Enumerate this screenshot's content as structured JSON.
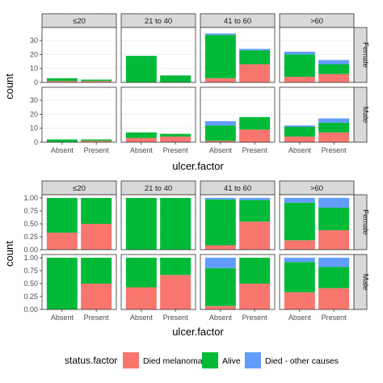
{
  "chart_data": [
    {
      "type": "bar",
      "position": "stack",
      "xlabel": "ulcer.factor",
      "ylabel": "count",
      "ylim": [
        0,
        37
      ],
      "yticks": [
        0,
        10,
        20,
        30
      ],
      "col_facets": [
        "≤20",
        "21 to 40",
        "41 to 60",
        ">60"
      ],
      "row_facets": [
        "Female",
        "Male"
      ],
      "categories": [
        "Absent",
        "Present"
      ],
      "series_order": [
        "Died melanoma",
        "Alive",
        "Died - other causes"
      ],
      "panels": {
        "Female": {
          "≤20": {
            "Absent": [
              1,
              2,
              0
            ],
            "Present": [
              1,
              1,
              0
            ]
          },
          "21 to 40": {
            "Absent": [
              0,
              19,
              0
            ],
            "Present": [
              0,
              5,
              0
            ]
          },
          "41 to 60": {
            "Absent": [
              3,
              31,
              1
            ],
            "Present": [
              13,
              10,
              1
            ]
          },
          ">60": {
            "Absent": [
              4,
              16,
              2
            ],
            "Present": [
              6,
              7,
              3
            ]
          }
        },
        "Male": {
          "≤20": {
            "Absent": [
              0,
              2,
              0
            ],
            "Present": [
              1,
              1,
              0
            ]
          },
          "21 to 40": {
            "Absent": [
              3,
              4,
              0
            ],
            "Present": [
              4,
              2,
              0
            ]
          },
          "41 to 60": {
            "Absent": [
              1,
              11,
              3
            ],
            "Present": [
              9,
              9,
              0
            ]
          },
          ">60": {
            "Absent": [
              4,
              7,
              1
            ],
            "Present": [
              7,
              7,
              3
            ]
          }
        }
      }
    },
    {
      "type": "bar",
      "position": "fill",
      "xlabel": "ulcer.factor",
      "ylabel": "count",
      "ylim": [
        0,
        1
      ],
      "yticks": [
        "0.00",
        "0.25",
        "0.50",
        "0.75",
        "1.00"
      ],
      "col_facets": [
        "≤20",
        "21 to 40",
        "41 to 60",
        ">60"
      ],
      "row_facets": [
        "Female",
        "Male"
      ],
      "categories": [
        "Absent",
        "Present"
      ],
      "series_order": [
        "Died melanoma",
        "Alive",
        "Died - other causes"
      ],
      "panels": {
        "Female": {
          "≤20": {
            "Absent": [
              0.33,
              0.67,
              0
            ],
            "Present": [
              0.5,
              0.5,
              0
            ]
          },
          "21 to 40": {
            "Absent": [
              0,
              1,
              0
            ],
            "Present": [
              0,
              1,
              0
            ]
          },
          "41 to 60": {
            "Absent": [
              0.086,
              0.886,
              0.029
            ],
            "Present": [
              0.542,
              0.417,
              0.042
            ]
          },
          ">60": {
            "Absent": [
              0.182,
              0.727,
              0.091
            ],
            "Present": [
              0.375,
              0.438,
              0.188
            ]
          }
        },
        "Male": {
          "≤20": {
            "Absent": [
              0,
              1,
              0
            ],
            "Present": [
              0.5,
              0.5,
              0
            ]
          },
          "21 to 40": {
            "Absent": [
              0.429,
              0.571,
              0
            ],
            "Present": [
              0.667,
              0.333,
              0
            ]
          },
          "41 to 60": {
            "Absent": [
              0.067,
              0.733,
              0.2
            ],
            "Present": [
              0.5,
              0.5,
              0
            ]
          },
          ">60": {
            "Absent": [
              0.333,
              0.583,
              0.083
            ],
            "Present": [
              0.412,
              0.412,
              0.176
            ]
          }
        }
      }
    }
  ],
  "legend": {
    "title": "status.factor",
    "items": [
      {
        "label": "Died melanoma",
        "color": "#F8766D"
      },
      {
        "label": "Alive",
        "color": "#00BA38"
      },
      {
        "label": "Died - other causes",
        "color": "#619CFF"
      }
    ]
  },
  "colors": {
    "panel_background": "#ffffff",
    "panel_border": "#333333",
    "grid": "#ebebeb",
    "strip_background": "#d9d9d9"
  }
}
